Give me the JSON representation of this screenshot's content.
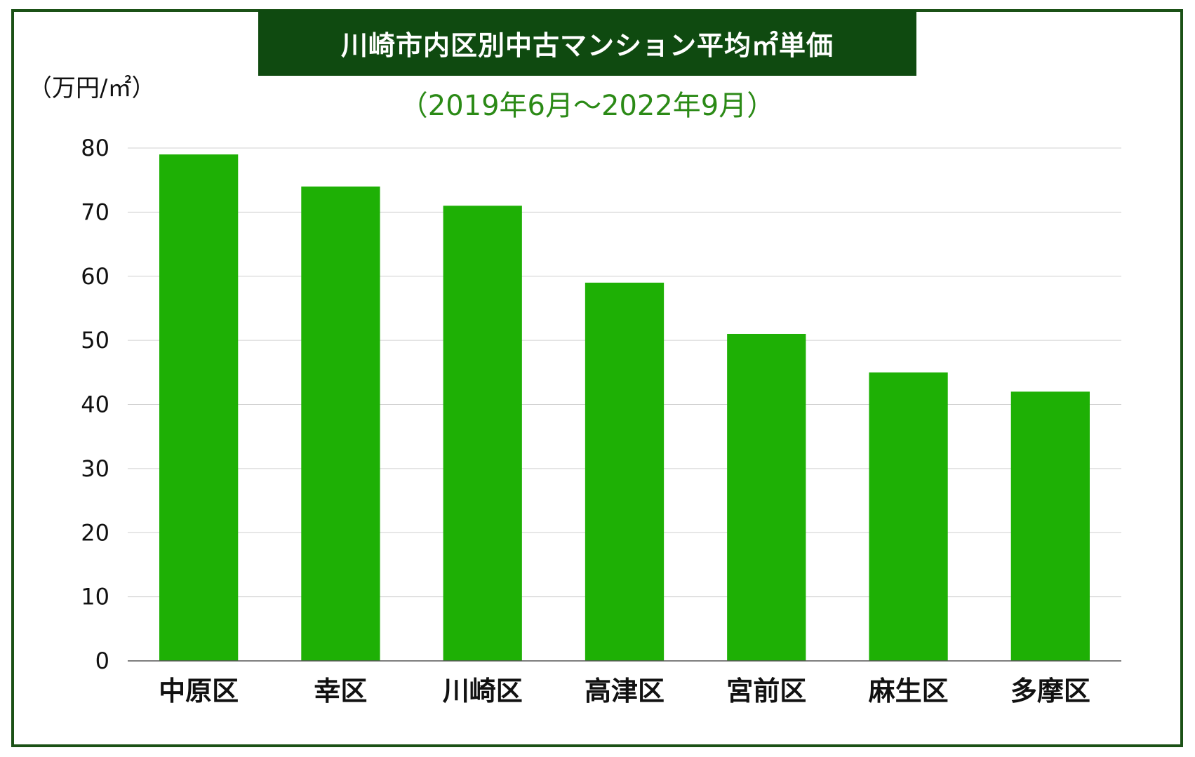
{
  "title": "川崎市内区別中古マンション平均㎡単価",
  "subtitle": "（2019年6月〜2022年9月）",
  "unit_label": "（万円/㎡）",
  "colors": {
    "bar": "#1eb005",
    "title_bg": "#0f4a10",
    "frame": "#1b5116",
    "subtitle": "#2b8a16",
    "grid": "#d0d0d0"
  },
  "chart_data": {
    "type": "bar",
    "title": "川崎市内区別中古マンション平均㎡単価",
    "subtitle": "（2019年6月〜2022年9月）",
    "xlabel": "",
    "ylabel": "（万円/㎡）",
    "categories": [
      "中原区",
      "幸区",
      "川崎区",
      "高津区",
      "宮前区",
      "麻生区",
      "多摩区"
    ],
    "values": [
      79,
      74,
      71,
      59,
      51,
      45,
      42
    ],
    "ylim": [
      0,
      80
    ],
    "yticks": [
      0,
      10,
      20,
      30,
      40,
      50,
      60,
      70,
      80
    ],
    "grid": true,
    "legend": "none"
  }
}
